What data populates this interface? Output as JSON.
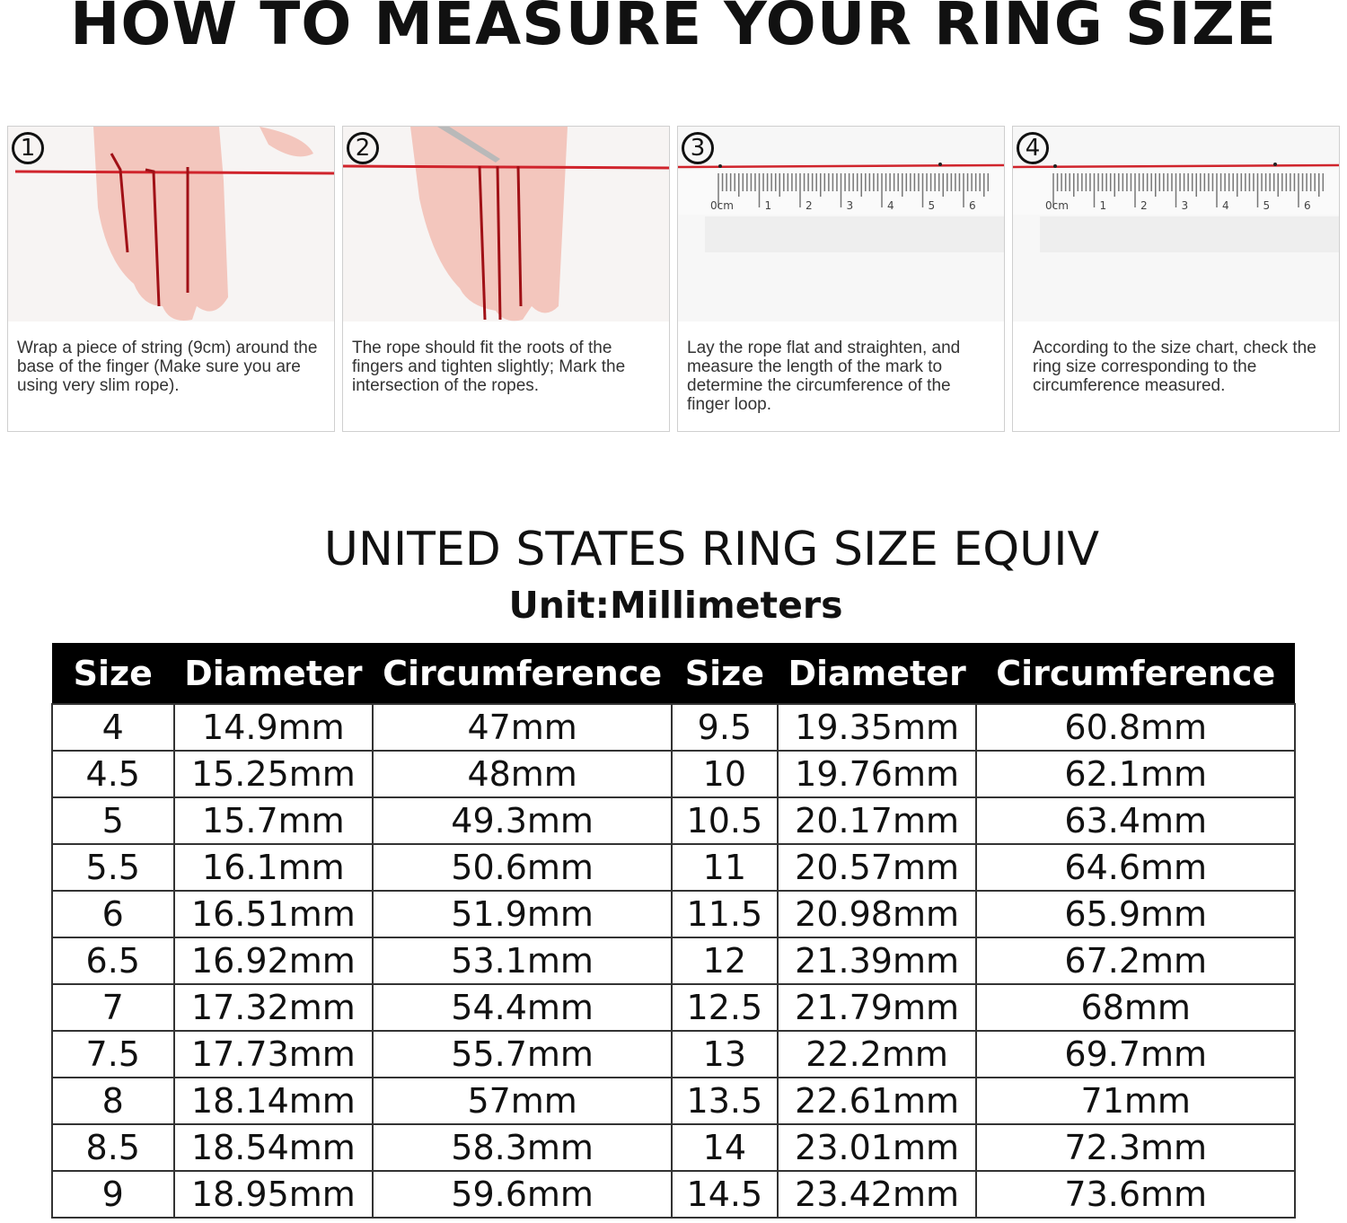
{
  "title": "HOW TO MEASURE YOUR RING SIZE",
  "steps": [
    {
      "number": "1",
      "text": "Wrap a piece of string (9cm) around the base of the finger (Make sure you are using very slim rope)."
    },
    {
      "number": "2",
      "text": "The rope should fit the roots of the fingers and tighten slightly; Mark the intersection of the ropes."
    },
    {
      "number": "3",
      "text": "Lay the rope flat and straighten, and measure the length of the mark to determine the circumference of the finger loop."
    },
    {
      "number": "4",
      "text": "According to the size chart, check the ring size corresponding to the circumference measured."
    }
  ],
  "ruler_labels": [
    "0cm",
    "1",
    "2",
    "3",
    "4",
    "5",
    "6"
  ],
  "chart_title": "UNITED STATES RING SIZE EQUIV",
  "unit": "Unit:Millimeters",
  "colors": {
    "string": "#d0242c",
    "header_bg": "#000000",
    "skin": "#f3c6bd"
  },
  "table": {
    "headers": [
      "Size",
      "Diameter",
      "Circumference",
      "Size",
      "Diameter",
      "Circumference"
    ],
    "rows": [
      [
        "4",
        "14.9mm",
        "47mm",
        "9.5",
        "19.35mm",
        "60.8mm"
      ],
      [
        "4.5",
        "15.25mm",
        "48mm",
        "10",
        "19.76mm",
        "62.1mm"
      ],
      [
        "5",
        "15.7mm",
        "49.3mm",
        "10.5",
        "20.17mm",
        "63.4mm"
      ],
      [
        "5.5",
        "16.1mm",
        "50.6mm",
        "11",
        "20.57mm",
        "64.6mm"
      ],
      [
        "6",
        "16.51mm",
        "51.9mm",
        "11.5",
        "20.98mm",
        "65.9mm"
      ],
      [
        "6.5",
        "16.92mm",
        "53.1mm",
        "12",
        "21.39mm",
        "67.2mm"
      ],
      [
        "7",
        "17.32mm",
        "54.4mm",
        "12.5",
        "21.79mm",
        "68mm"
      ],
      [
        "7.5",
        "17.73mm",
        "55.7mm",
        "13",
        "22.2mm",
        "69.7mm"
      ],
      [
        "8",
        "18.14mm",
        "57mm",
        "13.5",
        "22.61mm",
        "71mm"
      ],
      [
        "8.5",
        "18.54mm",
        "58.3mm",
        "14",
        "23.01mm",
        "72.3mm"
      ],
      [
        "9",
        "18.95mm",
        "59.6mm",
        "14.5",
        "23.42mm",
        "73.6mm"
      ]
    ]
  }
}
